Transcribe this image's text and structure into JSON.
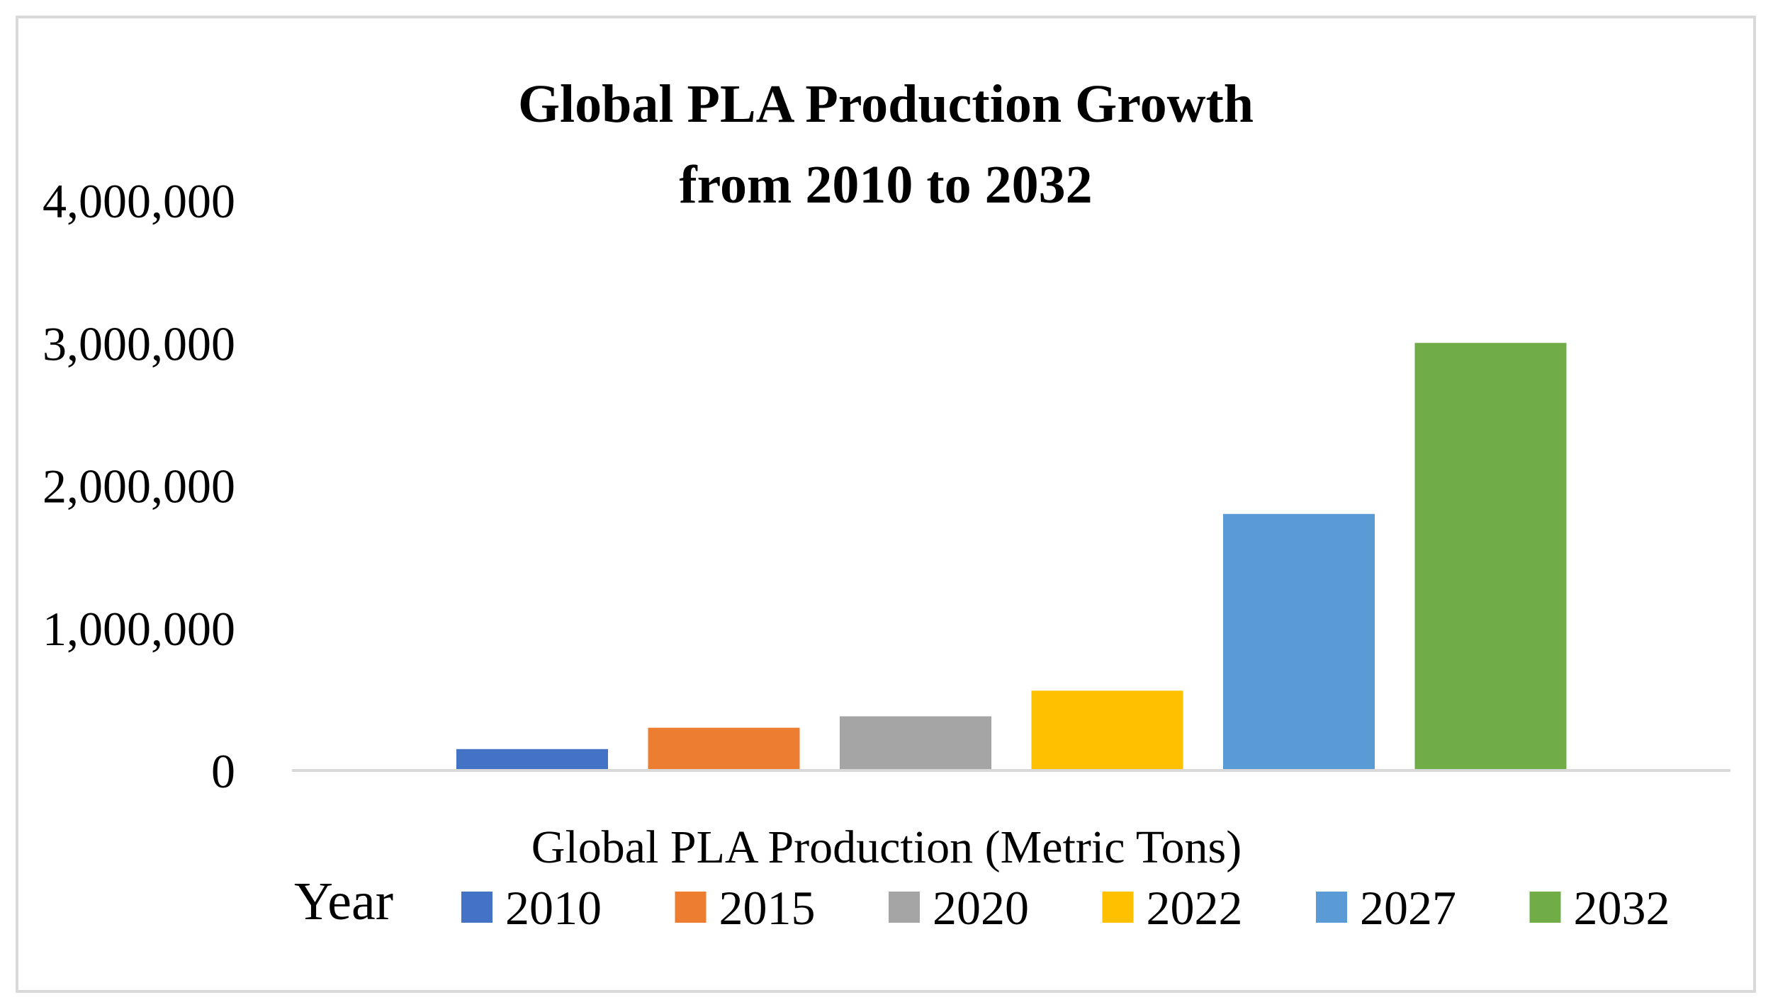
{
  "chart_data": {
    "type": "bar",
    "title_lines": [
      "Global PLA Production Growth",
      "from 2010 to 2032"
    ],
    "xlabel": "Global PLA Production (Metric Tons)",
    "ylabel": "",
    "ylim": [
      0,
      4000000
    ],
    "yticks": [
      0,
      1000000,
      2000000,
      3000000,
      4000000
    ],
    "ytick_labels": [
      "0",
      "1,000,000",
      "2,000,000",
      "3,000,000",
      "4,000,000"
    ],
    "grid": false,
    "legend_title": "Year",
    "legend_position": "bottom",
    "series": [
      {
        "name": "2010",
        "value": 150000,
        "color": "#4472C4"
      },
      {
        "name": "2015",
        "value": 300000,
        "color": "#ED7D31"
      },
      {
        "name": "2020",
        "value": 380000,
        "color": "#A5A5A5"
      },
      {
        "name": "2022",
        "value": 560000,
        "color": "#FFC000"
      },
      {
        "name": "2027",
        "value": 1800000,
        "color": "#5B9BD5"
      },
      {
        "name": "2032",
        "value": 3000000,
        "color": "#70AD47"
      }
    ]
  }
}
